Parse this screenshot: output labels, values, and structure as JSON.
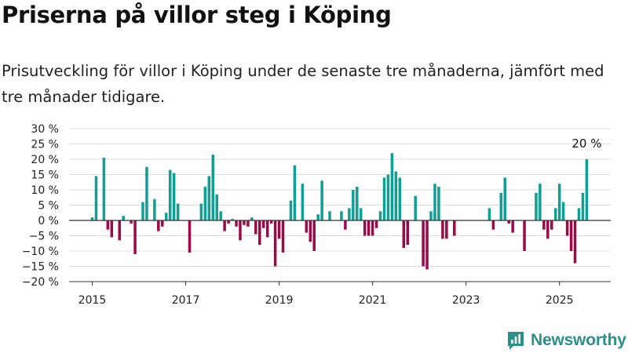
{
  "header": {
    "title": "Priserna på villor steg i Köping",
    "subtitle": "Prisutveckling för villor i Köping under de senaste tre månaderna, jämfört med tre månader tidigare."
  },
  "brand": {
    "name": "Newsworthy",
    "icon": "newsworthy-logo-icon",
    "color": "#2b8f8a"
  },
  "chart_data": {
    "type": "bar",
    "title": "Priserna på villor steg i Köping",
    "xlabel": "",
    "ylabel": "",
    "ylim": [
      -20,
      30
    ],
    "yticks": [
      -20,
      -15,
      -10,
      -5,
      0,
      5,
      10,
      15,
      20,
      25,
      30
    ],
    "ytick_labels": [
      "−20 %",
      "−15 %",
      "−10 %",
      "−5 %",
      "0 %",
      "5 %",
      "10 %",
      "15 %",
      "20 %",
      "25 %",
      "30 %"
    ],
    "xticks": [
      "2015",
      "2017",
      "2019",
      "2021",
      "2023",
      "2025"
    ],
    "grid": true,
    "legend": "none",
    "colors": {
      "positive": "#0f9f95",
      "negative": "#9b0a47",
      "zero_line": "#333333",
      "grid": "#dddddd"
    },
    "annotation": {
      "label": "20 %",
      "target": "last"
    },
    "series": [
      {
        "values": [
          [
            "2015-01",
            1
          ],
          [
            "2015-02",
            14.5
          ],
          [
            "2015-03",
            null
          ],
          [
            "2015-04",
            20.5
          ],
          [
            "2015-05",
            -3
          ],
          [
            "2015-06",
            -5.5
          ],
          [
            "2015-07",
            null
          ],
          [
            "2015-08",
            -6.5
          ],
          [
            "2015-09",
            1.5
          ],
          [
            "2015-10",
            null
          ],
          [
            "2015-11",
            -1
          ],
          [
            "2015-12",
            -11
          ],
          [
            "2016-01",
            null
          ],
          [
            "2016-02",
            6
          ],
          [
            "2016-03",
            17.5
          ],
          [
            "2016-04",
            null
          ],
          [
            "2016-05",
            7
          ],
          [
            "2016-06",
            -3.5
          ],
          [
            "2016-07",
            -2
          ],
          [
            "2016-08",
            2.5
          ],
          [
            "2016-09",
            16.5
          ],
          [
            "2016-10",
            15.5
          ],
          [
            "2016-11",
            5.5
          ],
          [
            "2016-12",
            null
          ],
          [
            "2017-01",
            null
          ],
          [
            "2017-02",
            -10.5
          ],
          [
            "2017-03",
            null
          ],
          [
            "2017-04",
            null
          ],
          [
            "2017-05",
            5.5
          ],
          [
            "2017-06",
            11
          ],
          [
            "2017-07",
            14.5
          ],
          [
            "2017-08",
            21.5
          ],
          [
            "2017-09",
            8.5
          ],
          [
            "2017-10",
            3
          ],
          [
            "2017-11",
            -3.5
          ],
          [
            "2017-12",
            -1
          ],
          [
            "2018-01",
            0.5
          ],
          [
            "2018-02",
            -2
          ],
          [
            "2018-03",
            -6.5
          ],
          [
            "2018-04",
            -1.5
          ],
          [
            "2018-05",
            -2
          ],
          [
            "2018-06",
            1
          ],
          [
            "2018-07",
            -4.5
          ],
          [
            "2018-08",
            -8
          ],
          [
            "2018-09",
            -2.5
          ],
          [
            "2018-10",
            -5.5
          ],
          [
            "2018-11",
            -1
          ],
          [
            "2018-12",
            -15
          ],
          [
            "2019-01",
            -6
          ],
          [
            "2019-02",
            -10.5
          ],
          [
            "2019-03",
            null
          ],
          [
            "2019-04",
            6.5
          ],
          [
            "2019-05",
            18
          ],
          [
            "2019-06",
            null
          ],
          [
            "2019-07",
            12
          ],
          [
            "2019-08",
            -4
          ],
          [
            "2019-09",
            -7
          ],
          [
            "2019-10",
            -10
          ],
          [
            "2019-11",
            2
          ],
          [
            "2019-12",
            13
          ],
          [
            "2020-01",
            null
          ],
          [
            "2020-02",
            3
          ],
          [
            "2020-03",
            null
          ],
          [
            "2020-04",
            null
          ],
          [
            "2020-05",
            3
          ],
          [
            "2020-06",
            -3
          ],
          [
            "2020-07",
            4
          ],
          [
            "2020-08",
            10
          ],
          [
            "2020-09",
            11
          ],
          [
            "2020-10",
            4
          ],
          [
            "2020-11",
            -5
          ],
          [
            "2020-12",
            -5
          ],
          [
            "2021-01",
            -5
          ],
          [
            "2021-02",
            -2.5
          ],
          [
            "2021-03",
            3
          ],
          [
            "2021-04",
            14
          ],
          [
            "2021-05",
            15
          ],
          [
            "2021-06",
            22
          ],
          [
            "2021-07",
            16
          ],
          [
            "2021-08",
            14
          ],
          [
            "2021-09",
            -9
          ],
          [
            "2021-10",
            -8
          ],
          [
            "2021-11",
            null
          ],
          [
            "2021-12",
            8
          ],
          [
            "2022-01",
            null
          ],
          [
            "2022-02",
            -15
          ],
          [
            "2022-03",
            -16
          ],
          [
            "2022-04",
            3
          ],
          [
            "2022-05",
            12
          ],
          [
            "2022-06",
            11
          ],
          [
            "2022-07",
            -6
          ],
          [
            "2022-08",
            -6
          ],
          [
            "2022-09",
            null
          ],
          [
            "2022-10",
            -5
          ],
          [
            "2022-11",
            null
          ],
          [
            "2022-12",
            null
          ],
          [
            "2023-01",
            null
          ],
          [
            "2023-02",
            null
          ],
          [
            "2023-03",
            null
          ],
          [
            "2023-04",
            null
          ],
          [
            "2023-05",
            null
          ],
          [
            "2023-06",
            null
          ],
          [
            "2023-07",
            4
          ],
          [
            "2023-08",
            -3
          ],
          [
            "2023-09",
            null
          ],
          [
            "2023-10",
            9
          ],
          [
            "2023-11",
            14
          ],
          [
            "2023-12",
            -1
          ],
          [
            "2024-01",
            -4
          ],
          [
            "2024-02",
            null
          ],
          [
            "2024-03",
            null
          ],
          [
            "2024-04",
            -10
          ],
          [
            "2024-05",
            null
          ],
          [
            "2024-06",
            null
          ],
          [
            "2024-07",
            9
          ],
          [
            "2024-08",
            12
          ],
          [
            "2024-09",
            -3
          ],
          [
            "2024-10",
            -6
          ],
          [
            "2024-11",
            -3
          ],
          [
            "2024-12",
            4
          ],
          [
            "2025-01",
            12
          ],
          [
            "2025-02",
            6
          ],
          [
            "2025-03",
            -5
          ],
          [
            "2025-04",
            -10
          ],
          [
            "2025-05",
            -14
          ],
          [
            "2025-06",
            4
          ],
          [
            "2025-07",
            9
          ],
          [
            "2025-08",
            20
          ]
        ]
      }
    ]
  }
}
